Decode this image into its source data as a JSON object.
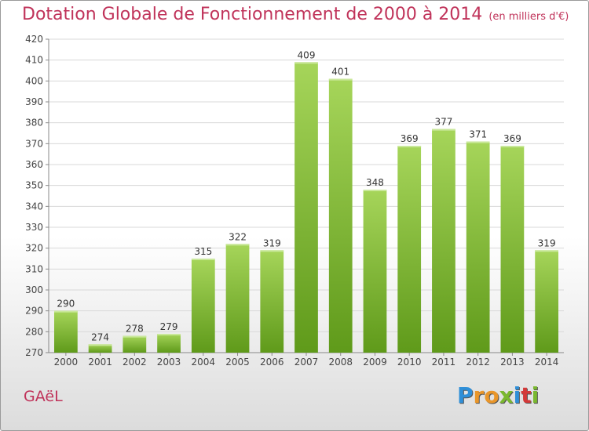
{
  "title": "Dotation Globale de Fonctionnement de 2000 à 2014",
  "subtitle": "(en milliers d'€)",
  "commune": "GAëL",
  "logo": "Proxiti",
  "colors": {
    "title": "#c0335a",
    "bar_light": "#a6d55a",
    "bar_dark": "#5f9a1a"
  },
  "chart_data": {
    "type": "bar",
    "categories": [
      "2000",
      "2001",
      "2002",
      "2003",
      "2004",
      "2005",
      "2006",
      "2007",
      "2008",
      "2009",
      "2010",
      "2011",
      "2012",
      "2013",
      "2014"
    ],
    "values": [
      290,
      274,
      278,
      279,
      315,
      322,
      319,
      409,
      401,
      348,
      369,
      377,
      371,
      369,
      319
    ],
    "title": "Dotation Globale de Fonctionnement de 2000 à 2014",
    "subtitle": "(en milliers d'€)",
    "xlabel": "",
    "ylabel": "",
    "ylim": [
      270,
      420
    ],
    "ytick_step": 10,
    "grid": true,
    "data_labels": true
  }
}
